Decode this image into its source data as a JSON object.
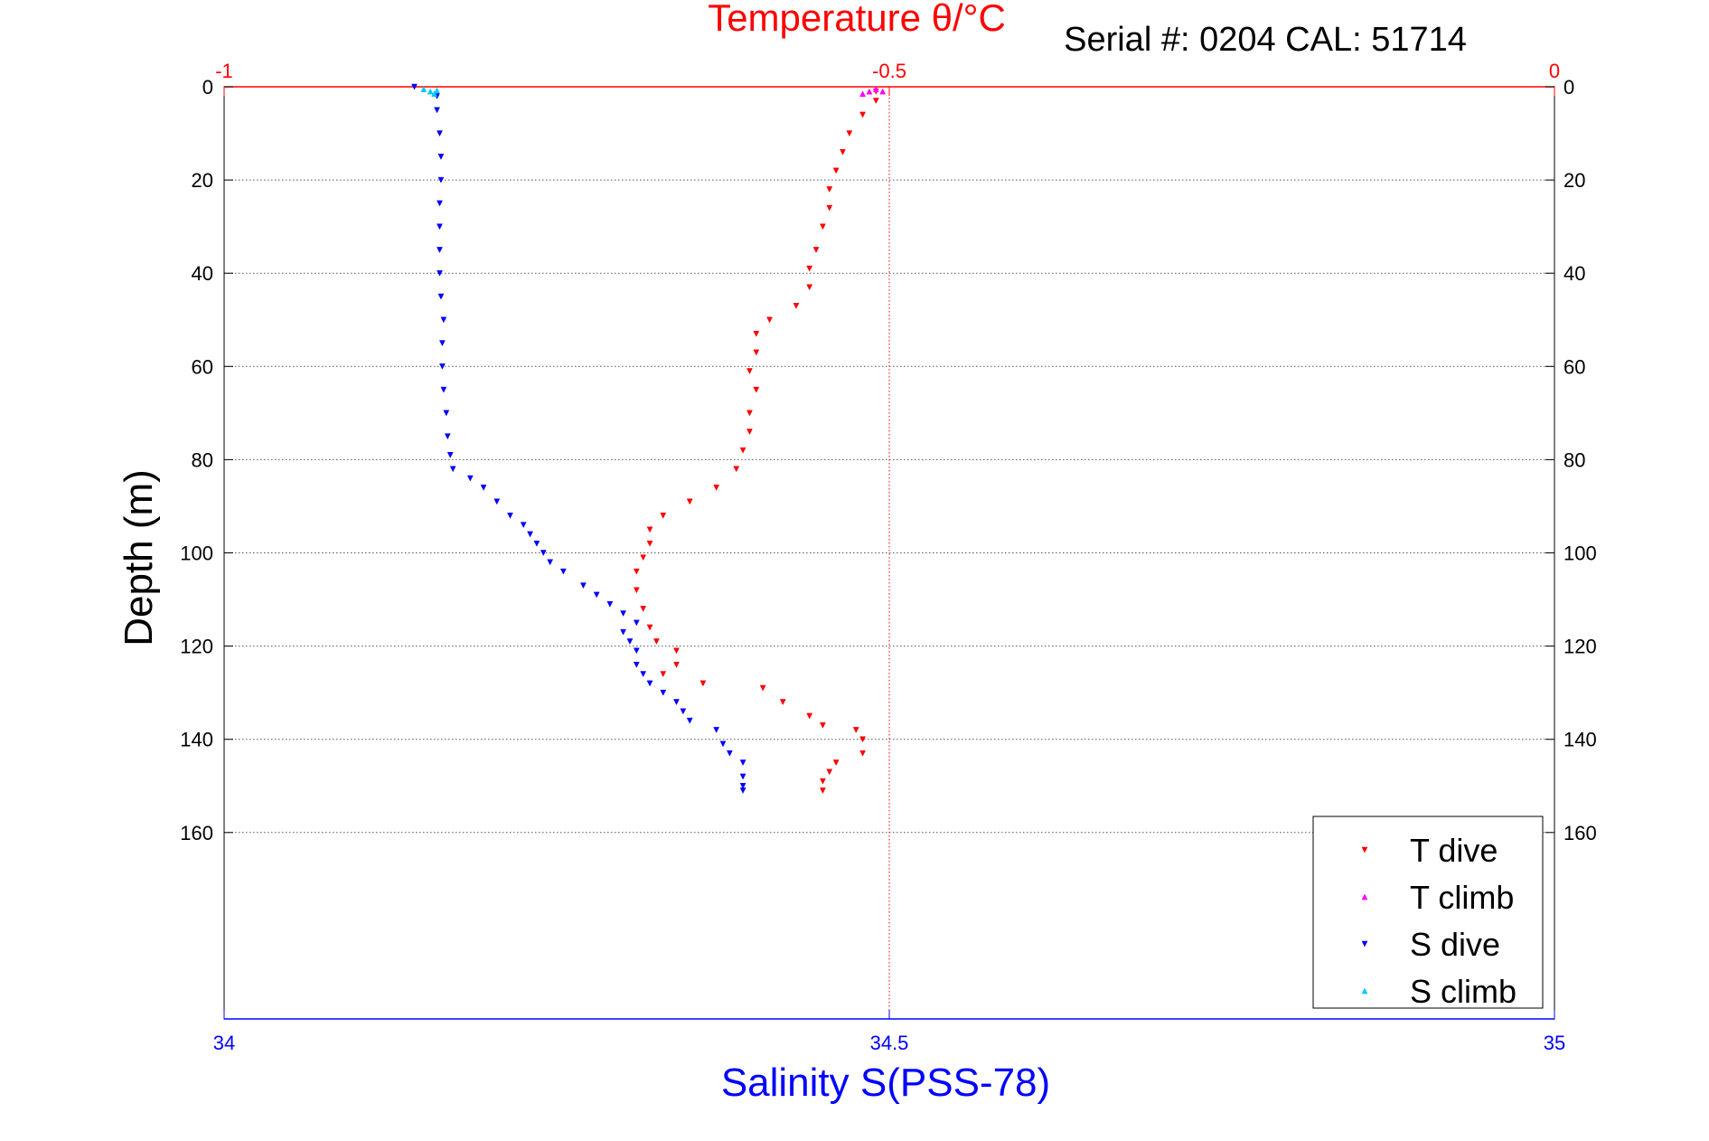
{
  "chart_data": {
    "type": "scatter",
    "title": "Temperature θ/°C",
    "subtitle": "Serial #: 0204   CAL: 51714",
    "xlabel": "Salinity S(PSS-78)",
    "ylabel": "Depth (m)",
    "x_bottom": {
      "lim": [
        34,
        35
      ],
      "ticks": [
        "34",
        "34.5",
        "35"
      ],
      "tick_values": [
        34,
        34.5,
        35
      ]
    },
    "x_top": {
      "lim": [
        -1,
        0
      ],
      "ticks": [
        "-1",
        "-0.5",
        "0"
      ],
      "tick_values": [
        -1,
        -0.5,
        0
      ]
    },
    "y": {
      "lim": [
        0,
        200
      ],
      "reversed": true,
      "ticks": [
        "0",
        "20",
        "40",
        "60",
        "80",
        "100",
        "120",
        "140",
        "160"
      ],
      "tick_values": [
        0,
        20,
        40,
        60,
        80,
        100,
        120,
        140,
        160
      ]
    },
    "grid": true,
    "legend_position": "bottom-right",
    "colors": {
      "t_dive": "#ff0000",
      "t_climb": "#ff00ff",
      "s_dive": "#0000ff",
      "s_climb": "#00c8ff",
      "top_axis": "#ff0000",
      "bottom_axis": "#0000ff"
    },
    "series": [
      {
        "name": "T dive",
        "axis": "top",
        "marker": "v",
        "color": "#ff0000",
        "points": [
          [
            -0.51,
            1
          ],
          [
            -0.51,
            3
          ],
          [
            -0.52,
            6
          ],
          [
            -0.53,
            10
          ],
          [
            -0.535,
            14
          ],
          [
            -0.54,
            18
          ],
          [
            -0.545,
            22
          ],
          [
            -0.545,
            26
          ],
          [
            -0.55,
            30
          ],
          [
            -0.555,
            35
          ],
          [
            -0.56,
            39
          ],
          [
            -0.56,
            43
          ],
          [
            -0.57,
            47
          ],
          [
            -0.59,
            50
          ],
          [
            -0.6,
            53
          ],
          [
            -0.6,
            57
          ],
          [
            -0.605,
            61
          ],
          [
            -0.6,
            65
          ],
          [
            -0.605,
            70
          ],
          [
            -0.605,
            74
          ],
          [
            -0.61,
            78
          ],
          [
            -0.615,
            82
          ],
          [
            -0.63,
            86
          ],
          [
            -0.65,
            89
          ],
          [
            -0.67,
            92
          ],
          [
            -0.68,
            95
          ],
          [
            -0.68,
            98
          ],
          [
            -0.685,
            101
          ],
          [
            -0.69,
            104
          ],
          [
            -0.69,
            108
          ],
          [
            -0.685,
            112
          ],
          [
            -0.68,
            116
          ],
          [
            -0.675,
            119
          ],
          [
            -0.66,
            121
          ],
          [
            -0.66,
            124
          ],
          [
            -0.67,
            126
          ],
          [
            -0.64,
            128
          ],
          [
            -0.595,
            129
          ],
          [
            -0.58,
            132
          ],
          [
            -0.56,
            135
          ],
          [
            -0.55,
            137
          ],
          [
            -0.525,
            138
          ],
          [
            -0.52,
            140
          ],
          [
            -0.52,
            143
          ],
          [
            -0.54,
            145
          ],
          [
            -0.545,
            147
          ],
          [
            -0.55,
            149
          ],
          [
            -0.55,
            151
          ]
        ]
      },
      {
        "name": "T climb",
        "axis": "top",
        "marker": "^",
        "color": "#ff00ff",
        "points": [
          [
            -0.51,
            0.5
          ],
          [
            -0.515,
            1
          ],
          [
            -0.505,
            1
          ],
          [
            -0.52,
            1.5
          ]
        ]
      },
      {
        "name": "S dive",
        "axis": "bottom",
        "marker": "v",
        "color": "#0000ff",
        "points": [
          [
            34.143,
            0
          ],
          [
            34.16,
            2
          ],
          [
            34.16,
            5
          ],
          [
            34.162,
            10
          ],
          [
            34.163,
            15
          ],
          [
            34.163,
            20
          ],
          [
            34.162,
            25
          ],
          [
            34.162,
            30
          ],
          [
            34.162,
            35
          ],
          [
            34.162,
            40
          ],
          [
            34.163,
            45
          ],
          [
            34.165,
            50
          ],
          [
            34.164,
            55
          ],
          [
            34.164,
            60
          ],
          [
            34.165,
            65
          ],
          [
            34.167,
            70
          ],
          [
            34.168,
            75
          ],
          [
            34.17,
            79
          ],
          [
            34.172,
            82
          ],
          [
            34.185,
            84
          ],
          [
            34.195,
            86
          ],
          [
            34.205,
            89
          ],
          [
            34.215,
            92
          ],
          [
            34.225,
            94
          ],
          [
            34.23,
            96
          ],
          [
            34.235,
            98
          ],
          [
            34.24,
            100
          ],
          [
            34.245,
            102
          ],
          [
            34.255,
            104
          ],
          [
            34.27,
            107
          ],
          [
            34.28,
            109
          ],
          [
            34.29,
            111
          ],
          [
            34.3,
            113
          ],
          [
            34.31,
            115
          ],
          [
            34.3,
            117
          ],
          [
            34.305,
            119
          ],
          [
            34.31,
            121
          ],
          [
            34.31,
            124
          ],
          [
            34.315,
            126
          ],
          [
            34.32,
            128
          ],
          [
            34.33,
            130
          ],
          [
            34.34,
            132
          ],
          [
            34.345,
            134
          ],
          [
            34.35,
            136
          ],
          [
            34.37,
            138
          ],
          [
            34.375,
            141
          ],
          [
            34.38,
            143
          ],
          [
            34.39,
            145
          ],
          [
            34.39,
            148
          ],
          [
            34.39,
            150
          ],
          [
            34.39,
            151
          ]
        ]
      },
      {
        "name": "S climb",
        "axis": "bottom",
        "marker": "^",
        "color": "#00c8ff",
        "points": [
          [
            34.15,
            0.5
          ],
          [
            34.155,
            1
          ],
          [
            34.158,
            1.5
          ],
          [
            34.16,
            0.8
          ]
        ]
      }
    ]
  }
}
